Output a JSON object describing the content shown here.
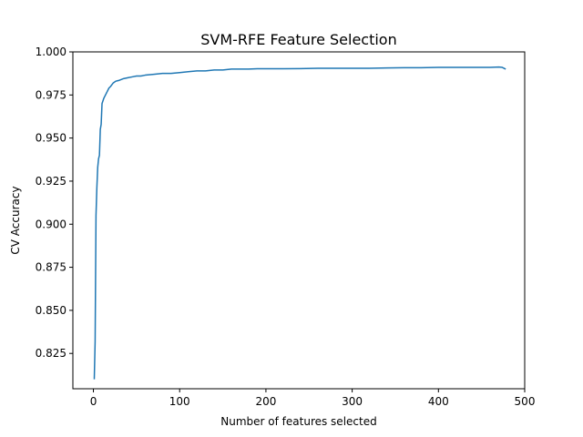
{
  "chart_data": {
    "type": "line",
    "title": "SVM-RFE Feature Selection",
    "xlabel": "Number of features selected",
    "ylabel": "CV Accuracy",
    "xlim": [
      -23.8,
      500
    ],
    "ylim": [
      0.8045,
      1.0
    ],
    "xticks": [
      0,
      100,
      200,
      300,
      400,
      500
    ],
    "yticks": [
      0.825,
      0.85,
      0.875,
      0.9,
      0.925,
      0.95,
      0.975,
      1.0
    ],
    "xtick_labels": [
      "0",
      "100",
      "200",
      "300",
      "400",
      "500"
    ],
    "ytick_labels": [
      "0.825",
      "0.850",
      "0.875",
      "0.900",
      "0.925",
      "0.950",
      "0.975",
      "1.000"
    ],
    "grid": false,
    "legend": "none",
    "series": [
      {
        "color": "#1f77b4",
        "x": [
          1,
          2,
          3,
          4,
          5,
          6,
          7,
          8,
          9,
          10,
          12,
          14,
          16,
          18,
          20,
          23,
          26,
          30,
          35,
          40,
          45,
          50,
          55,
          60,
          70,
          80,
          90,
          100,
          110,
          120,
          130,
          140,
          150,
          160,
          170,
          180,
          190,
          200,
          220,
          240,
          260,
          280,
          300,
          320,
          340,
          360,
          380,
          400,
          420,
          440,
          460,
          470,
          474,
          478
        ],
        "y": [
          0.81,
          0.832,
          0.905,
          0.921,
          0.933,
          0.938,
          0.94,
          0.955,
          0.958,
          0.97,
          0.973,
          0.975,
          0.977,
          0.979,
          0.98,
          0.982,
          0.983,
          0.9835,
          0.9845,
          0.985,
          0.9855,
          0.986,
          0.986,
          0.9865,
          0.987,
          0.9875,
          0.9875,
          0.988,
          0.9885,
          0.989,
          0.989,
          0.9895,
          0.9895,
          0.99,
          0.99,
          0.99,
          0.9902,
          0.9902,
          0.9902,
          0.9903,
          0.9905,
          0.9905,
          0.9905,
          0.9905,
          0.9907,
          0.9908,
          0.9908,
          0.991,
          0.991,
          0.991,
          0.991,
          0.9912,
          0.991,
          0.99
        ]
      }
    ]
  }
}
